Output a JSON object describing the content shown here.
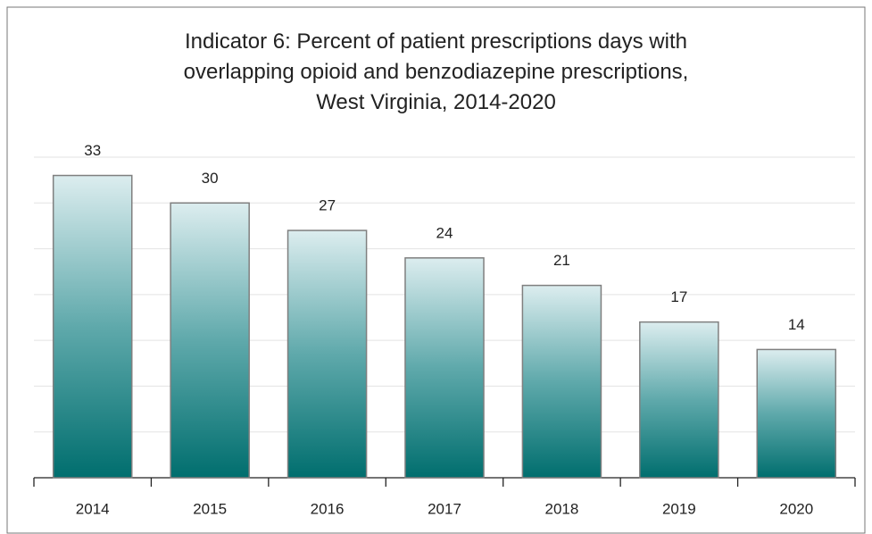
{
  "chart_data": {
    "type": "bar",
    "title": "Indicator 6: Percent of patient prescriptions days with\noverlapping opioid and benzodiazepine prescriptions,\nWest Virginia, 2014-2020",
    "categories": [
      "2014",
      "2015",
      "2016",
      "2017",
      "2018",
      "2019",
      "2020"
    ],
    "values": [
      33,
      30,
      27,
      24,
      21,
      17,
      14
    ],
    "color": "#006e6e",
    "ylim": [
      0,
      35
    ],
    "yticks": [
      0,
      5,
      10,
      15,
      20,
      25,
      30,
      35
    ],
    "grid": true
  }
}
